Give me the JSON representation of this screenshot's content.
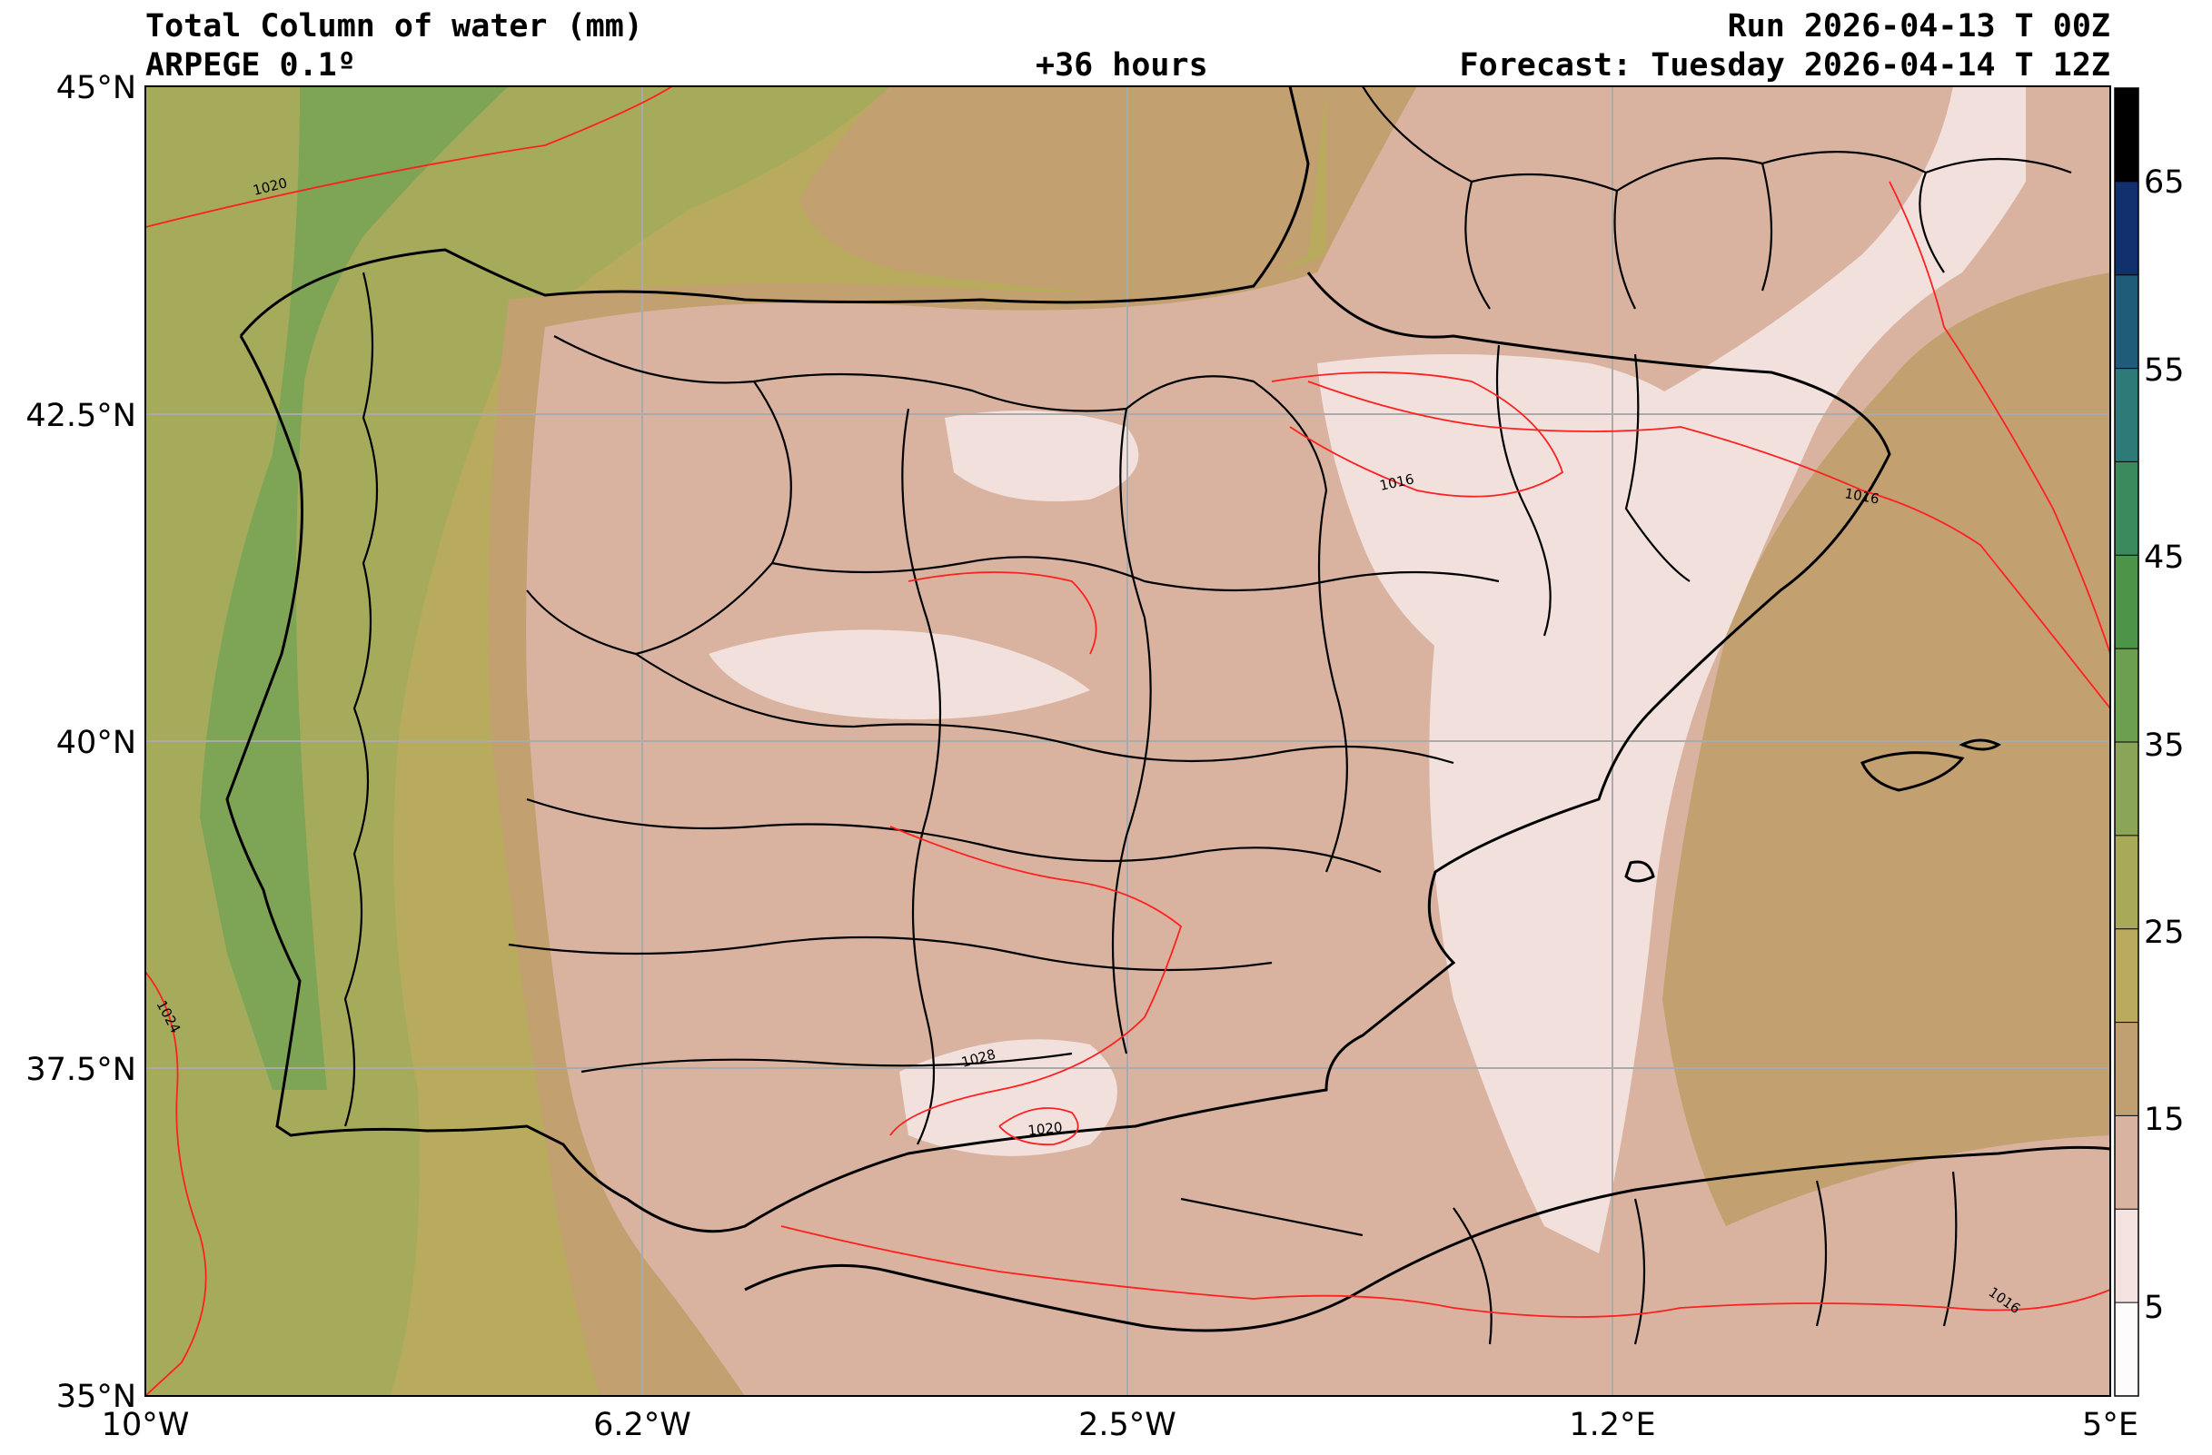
{
  "header": {
    "title": "Total Column of water (mm)",
    "model": "ARPEGE 0.1º",
    "lead": "+36 hours",
    "run": "Run 2026-04-13 T 00Z",
    "forecast": "Forecast: Tuesday 2026-04-14 T 12Z"
  },
  "axes": {
    "lat_ticks": [
      "45°N",
      "42.5°N",
      "40°N",
      "37.5°N",
      "35°N"
    ],
    "lon_ticks": [
      "10°W",
      "6.2°W",
      "2.5°W",
      "1.2°E",
      "5°E"
    ]
  },
  "colorbar": {
    "tick_labels": [
      "65",
      "55",
      "45",
      "35",
      "25",
      "15",
      "5"
    ],
    "colors": [
      "#000000",
      "#13306e",
      "#1e5c7a",
      "#2e7a78",
      "#3a8a5e",
      "#4d9448",
      "#6da04e",
      "#8aa558",
      "#a8aa5a",
      "#b8ab5e",
      "#c0a070",
      "#d9b3a2",
      "#f3e2e0",
      "#fdfbfb"
    ]
  },
  "isobars": {
    "color": "#ff2020",
    "labels": [
      "1020",
      "1016",
      "1016",
      "1024",
      "1028",
      "1020",
      "1016"
    ]
  },
  "palette": {
    "ocean_green": "#6aa054",
    "ocean_olive": "#b3ad62",
    "land_brown": "#c2a070",
    "land_pink": "#dab3a0",
    "land_light": "#f2e0dd",
    "grid": "#aaaaaa"
  }
}
